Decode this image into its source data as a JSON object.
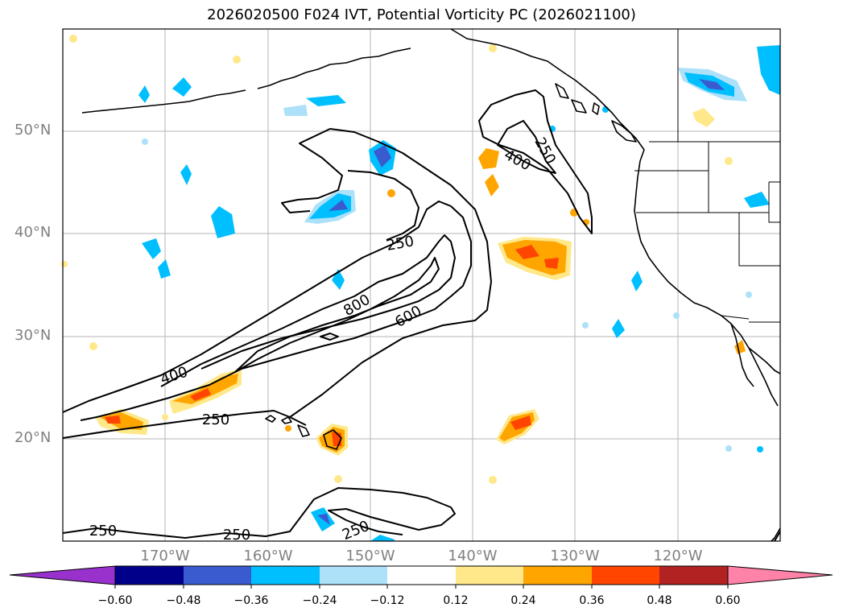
{
  "title": "2026020500 F024 IVT, Potential Vorticity PC (2026021100)",
  "map": {
    "lat_ticks": [
      "50°N",
      "40°N",
      "30°N",
      "20°N"
    ],
    "lon_ticks": [
      "170°W",
      "160°W",
      "150°W",
      "140°W",
      "130°W",
      "120°W"
    ],
    "extent": {
      "lon_min": -180,
      "lon_max": -110,
      "lat_min": 10,
      "lat_max": 60
    }
  },
  "contour_labels": {
    "c250_a": "250",
    "c250_b": "250",
    "c250_c": "250",
    "c250_d": "250",
    "c250_e": "250",
    "c400_a": "400",
    "c400_b": "400",
    "c600": "600",
    "c800": "800"
  },
  "colorbar": {
    "ticks": [
      "−0.60",
      "−0.48",
      "−0.36",
      "−0.24",
      "−0.12",
      "0.12",
      "0.24",
      "0.36",
      "0.48",
      "0.60"
    ],
    "colors": [
      "#9932CC",
      "#00008B",
      "#3A5BCF",
      "#00BFFF",
      "#ADE1F9",
      "#FFFFFF",
      "#FFE88A",
      "#FFA500",
      "#FF4500",
      "#B22222",
      "#FF82A8"
    ]
  }
}
